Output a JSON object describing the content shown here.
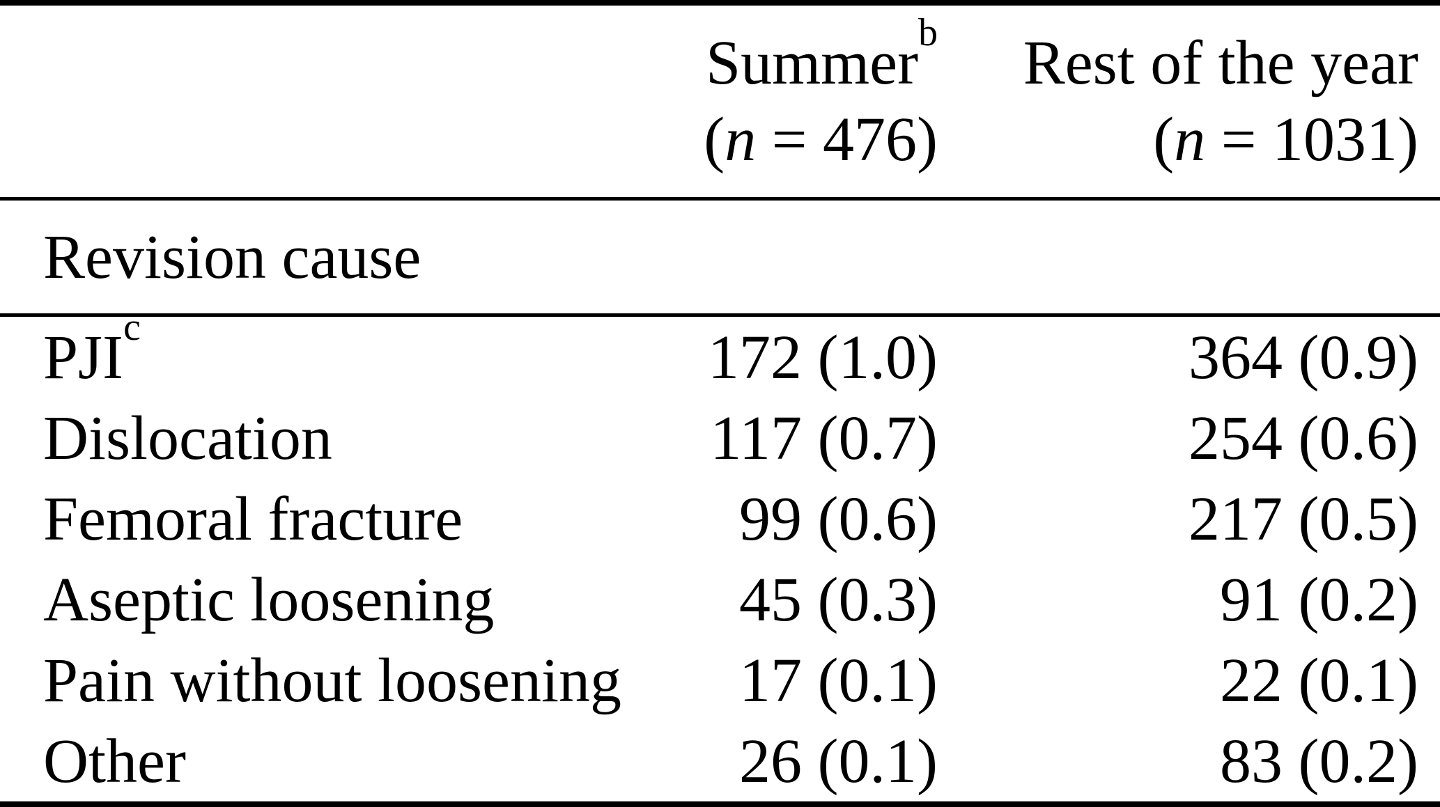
{
  "header": {
    "summer": {
      "title": "Summer",
      "superscript": "b",
      "n_prefix": "(",
      "n_symbol": "n",
      "n_suffix": " = 476)"
    },
    "rest": {
      "title": "Rest of the year",
      "n_prefix": "(",
      "n_symbol": "n",
      "n_suffix": " = 1031)"
    }
  },
  "section": {
    "title": "Revision cause"
  },
  "rows": [
    {
      "label": "PJI",
      "superscript": "c",
      "summer": "172 (1.0)",
      "rest": "364 (0.9)"
    },
    {
      "label": "Dislocation",
      "summer": "117 (0.7)",
      "rest": "254 (0.6)"
    },
    {
      "label": "Femoral fracture",
      "summer": "99 (0.6)",
      "rest": "217 (0.5)"
    },
    {
      "label": "Aseptic loosening",
      "summer": "45 (0.3)",
      "rest": "91 (0.2)"
    },
    {
      "label": "Pain without loosening",
      "summer": "17 (0.1)",
      "rest": "22 (0.1)"
    },
    {
      "label": "Other",
      "summer": "26 (0.1)",
      "rest": "83 (0.2)"
    }
  ],
  "chart_data": {
    "type": "table",
    "columns": [
      "Revision cause",
      "Summer (n = 476)",
      "Rest of the year (n = 1031)"
    ],
    "rows": [
      [
        "PJI",
        "172 (1.0)",
        "364 (0.9)"
      ],
      [
        "Dislocation",
        "117 (0.7)",
        "254 (0.6)"
      ],
      [
        "Femoral fracture",
        "99 (0.6)",
        "217 (0.5)"
      ],
      [
        "Aseptic loosening",
        "45 (0.3)",
        "91 (0.2)"
      ],
      [
        "Pain without loosening",
        "17 (0.1)",
        "22 (0.1)"
      ],
      [
        "Other",
        "26 (0.1)",
        "83 (0.2)"
      ]
    ],
    "footnote_markers": [
      "b",
      "c"
    ]
  },
  "colors": {
    "text": "#000000",
    "background": "#ffffff",
    "rule": "#000000"
  }
}
